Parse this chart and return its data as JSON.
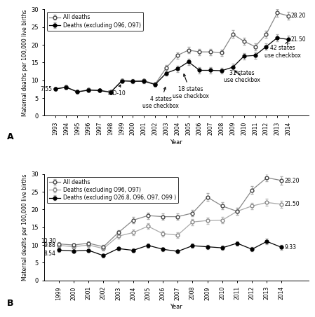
{
  "panel_A": {
    "years": [
      1993,
      1994,
      1995,
      1996,
      1997,
      1998,
      1999,
      2000,
      2001,
      2002,
      2003,
      2004,
      2005,
      2006,
      2007,
      2008,
      2009,
      2010,
      2011,
      2012,
      2013,
      2014
    ],
    "all_deaths": [
      7.55,
      8.1,
      6.8,
      7.3,
      7.2,
      6.7,
      9.9,
      9.8,
      9.9,
      8.9,
      13.5,
      17.0,
      18.5,
      18.0,
      18.0,
      17.8,
      23.0,
      21.0,
      19.5,
      23.0,
      29.0,
      28.2
    ],
    "all_deaths_err": [
      0.4,
      0.4,
      0.4,
      0.4,
      0.4,
      0.4,
      0.5,
      0.5,
      0.5,
      0.5,
      0.8,
      0.9,
      0.9,
      0.9,
      0.9,
      0.9,
      1.1,
      1.0,
      1.0,
      1.0,
      1.1,
      1.1
    ],
    "excl_O96_O97": [
      7.55,
      8.0,
      6.7,
      7.2,
      7.1,
      6.6,
      9.8,
      9.7,
      9.7,
      8.8,
      12.0,
      13.2,
      15.2,
      12.8,
      12.8,
      12.7,
      13.7,
      16.8,
      17.0,
      19.5,
      22.0,
      21.5
    ],
    "excl_O96_O97_err": [
      0.4,
      0.4,
      0.4,
      0.4,
      0.4,
      0.4,
      0.5,
      0.5,
      0.5,
      0.5,
      0.7,
      0.8,
      0.9,
      0.8,
      0.8,
      0.8,
      0.9,
      0.9,
      0.9,
      0.9,
      1.0,
      1.0
    ],
    "label_1993": "7.55",
    "label_end_all": "28.20",
    "label_end_excl": "21.50"
  },
  "panel_B": {
    "years": [
      1999,
      2000,
      2001,
      2002,
      2003,
      2004,
      2005,
      2006,
      2007,
      2008,
      2009,
      2010,
      2011,
      2012,
      2013,
      2014
    ],
    "all_deaths": [
      10.3,
      10.0,
      10.5,
      9.5,
      13.5,
      17.0,
      18.3,
      18.0,
      18.0,
      19.0,
      23.5,
      21.0,
      19.5,
      25.5,
      29.0,
      28.2
    ],
    "all_deaths_err": [
      0.5,
      0.5,
      0.5,
      0.5,
      0.7,
      0.9,
      0.9,
      0.9,
      0.9,
      0.9,
      1.1,
      1.0,
      1.0,
      1.1,
      1.1,
      1.1
    ],
    "excl_O96_O97": [
      9.88,
      9.5,
      10.0,
      9.0,
      12.5,
      13.5,
      15.3,
      13.2,
      12.8,
      16.5,
      16.9,
      17.0,
      19.5,
      21.0,
      22.0,
      21.5
    ],
    "excl_O96_O97_err": [
      0.5,
      0.5,
      0.5,
      0.5,
      0.7,
      0.8,
      0.8,
      0.8,
      0.8,
      0.9,
      0.9,
      0.9,
      0.9,
      0.9,
      1.0,
      1.0
    ],
    "excl_O268_O96_O97_O99": [
      8.54,
      8.3,
      8.5,
      7.0,
      9.0,
      8.5,
      9.9,
      8.8,
      8.2,
      9.8,
      9.5,
      9.2,
      10.5,
      8.8,
      11.0,
      9.33
    ],
    "excl_O268_err": [
      0.4,
      0.4,
      0.4,
      0.5,
      0.5,
      0.5,
      0.6,
      0.5,
      0.5,
      0.6,
      0.6,
      0.6,
      0.6,
      0.6,
      0.7,
      0.6
    ],
    "label_1999_all": "10.30",
    "label_1999_excl": "9.88",
    "label_1999_excl2": "8.54",
    "label_end_all": "28.20",
    "label_end_excl": "21.50",
    "label_end_excl2": "9.33"
  },
  "ylabel": "Maternal deaths per 100,000 live births",
  "xlabel": "Year",
  "ylim": [
    0,
    30
  ],
  "yticks": [
    0,
    5,
    10,
    15,
    20,
    25,
    30
  ]
}
